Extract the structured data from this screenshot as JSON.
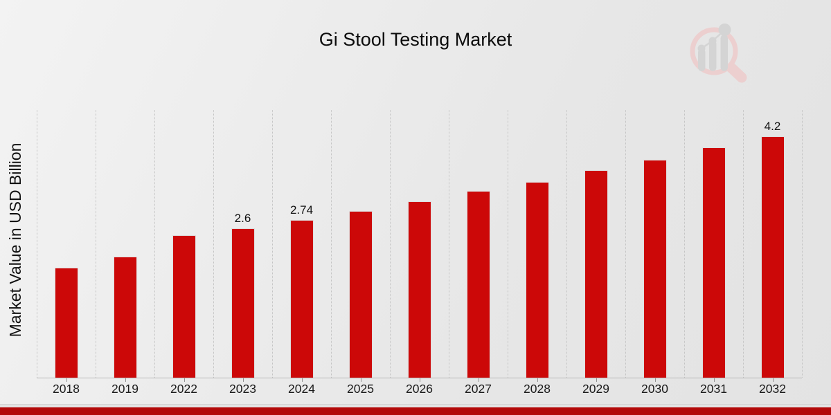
{
  "header": {
    "title": "Gi Stool Testing Market"
  },
  "branding": {
    "logo_icon": "magnifier-bar-chart-logo",
    "logo_ring_color": "#eccfcf",
    "logo_glyph_color": "#d4d4d4"
  },
  "chart_data": {
    "type": "bar",
    "title": "Gi Stool Testing Market",
    "xlabel": "",
    "ylabel": "Market Value in USD Billion",
    "categories": [
      "2018",
      "2019",
      "2022",
      "2023",
      "2024",
      "2025",
      "2026",
      "2027",
      "2028",
      "2029",
      "2030",
      "2031",
      "2032"
    ],
    "values": [
      1.91,
      2.1,
      2.48,
      2.6,
      2.74,
      2.9,
      3.06,
      3.25,
      3.4,
      3.6,
      3.79,
      4.0,
      4.2
    ],
    "bar_value_labels": [
      "",
      "",
      "",
      "2.6",
      "2.74",
      "",
      "",
      "",
      "",
      "",
      "",
      "",
      "4.2"
    ],
    "bar_color": "#cc0808",
    "bar_border_color": "#dedede",
    "ylim": [
      0,
      4.65
    ],
    "y_ticks_shown": false,
    "grid": "vertical dotted lines between categories",
    "legend": "none"
  },
  "footer": {
    "accent_bar_color": "#b30909"
  }
}
